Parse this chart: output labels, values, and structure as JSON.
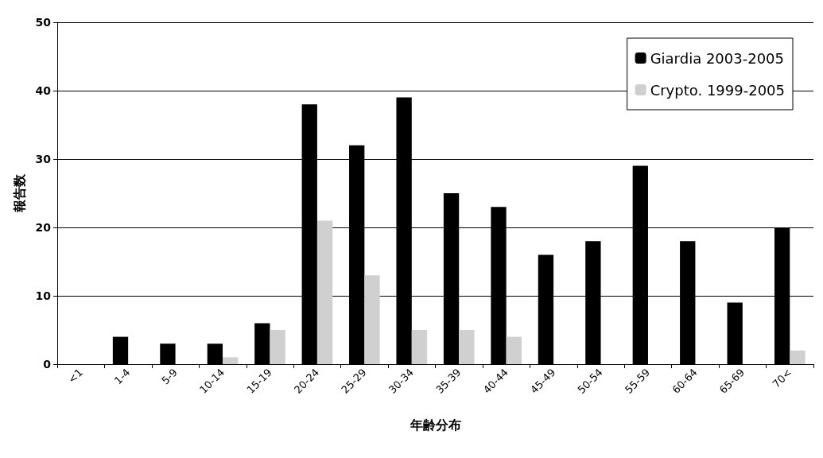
{
  "chart_data": {
    "type": "bar",
    "xlabel": "年齢分布",
    "ylabel": "報告数",
    "categories": [
      "<1",
      "1-4",
      "5-9",
      "10-14",
      "15-19",
      "20-24",
      "25-29",
      "30-34",
      "35-39",
      "40-44",
      "45-49",
      "50-54",
      "55-59",
      "60-64",
      "65-69",
      "70<"
    ],
    "series": [
      {
        "name": "Giardia 2003-2005",
        "color": "#000000",
        "values": [
          0,
          4,
          3,
          3,
          6,
          38,
          32,
          39,
          25,
          23,
          16,
          18,
          29,
          18,
          9,
          20
        ]
      },
      {
        "name": "Crypto. 1999-2005",
        "color": "#d0d0d0",
        "values": [
          0,
          0,
          0,
          1,
          5,
          21,
          13,
          5,
          5,
          4,
          0,
          0,
          0,
          0,
          0,
          2
        ]
      }
    ],
    "ylim": [
      0,
      50
    ],
    "yticks": [
      0,
      10,
      20,
      30,
      40,
      50
    ],
    "grid": "y",
    "legend": "top right"
  }
}
